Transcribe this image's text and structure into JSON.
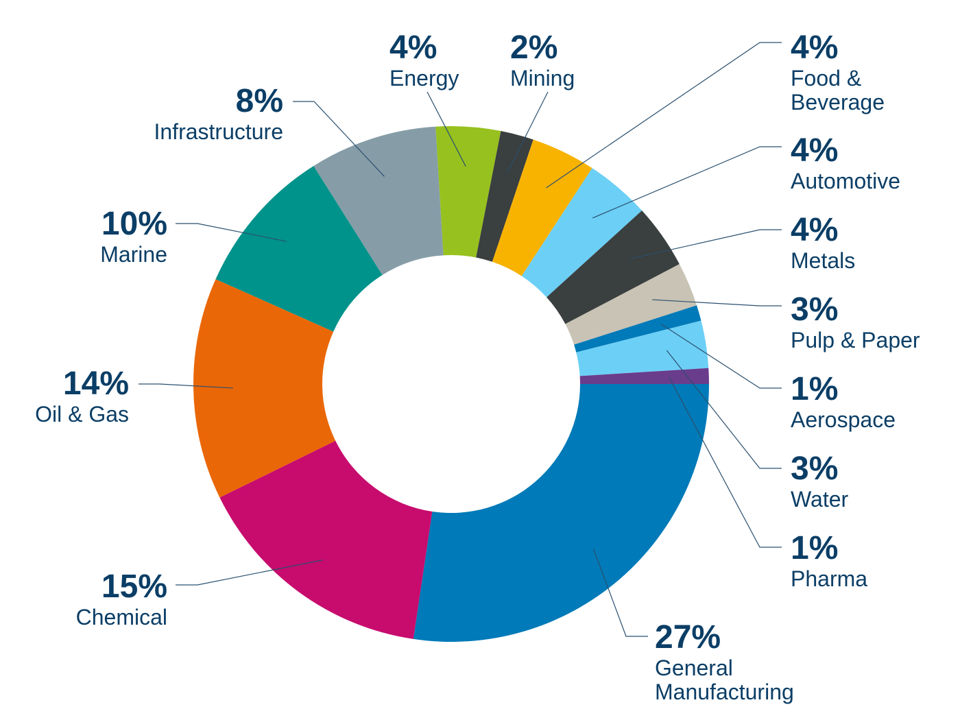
{
  "chart_data": {
    "type": "pie",
    "donut": true,
    "title": "",
    "legend": "none",
    "slices": [
      {
        "pct_label": "27%",
        "value": 27.7,
        "label_lines": [
          "General",
          "Manufacturing"
        ],
        "color": "#007ab8"
      },
      {
        "pct_label": "15%",
        "value": 15.6,
        "label_lines": [
          "Chemical"
        ],
        "color": "#c70c6e"
      },
      {
        "pct_label": "14%",
        "value": 14.1,
        "label_lines": [
          "Oil & Gas"
        ],
        "color": "#ea6708"
      },
      {
        "pct_label": "10%",
        "value": 9.5,
        "label_lines": [
          "Marine"
        ],
        "color": "#00938b"
      },
      {
        "pct_label": "8%",
        "value": 8.1,
        "label_lines": [
          "Infrastructure"
        ],
        "color": "#869da8"
      },
      {
        "pct_label": "4%",
        "value": 4.1,
        "label_lines": [
          "Energy"
        ],
        "color": "#97c11f"
      },
      {
        "pct_label": "2%",
        "value": 2.1,
        "label_lines": [
          "Mining"
        ],
        "color": "#3a3f3f"
      },
      {
        "pct_label": "4%",
        "value": 4.1,
        "label_lines": [
          "Food &",
          "Beverage"
        ],
        "color": "#f8b200"
      },
      {
        "pct_label": "4%",
        "value": 4.1,
        "label_lines": [
          "Automotive"
        ],
        "color": "#6ccff6"
      },
      {
        "pct_label": "4%",
        "value": 4.1,
        "label_lines": [
          "Metals"
        ],
        "color": "#3a3f3f"
      },
      {
        "pct_label": "3%",
        "value": 2.8,
        "label_lines": [
          "Pulp & Paper"
        ],
        "color": "#c8c3b4"
      },
      {
        "pct_label": "1%",
        "value": 1.0,
        "label_lines": [
          "Aerospace"
        ],
        "color": "#007ab8"
      },
      {
        "pct_label": "3%",
        "value": 3.0,
        "label_lines": [
          "Water"
        ],
        "color": "#6ccff6"
      },
      {
        "pct_label": "1%",
        "value": 1.0,
        "label_lines": [
          "Pharma"
        ],
        "color": "#6a3c8c"
      }
    ]
  }
}
